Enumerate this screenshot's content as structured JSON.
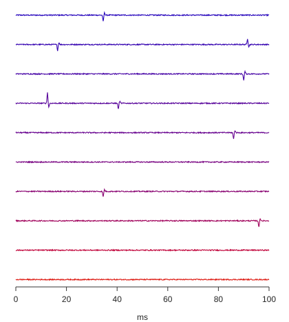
{
  "chart_data": {
    "type": "line",
    "title": "",
    "xlabel": "ms",
    "ylabel": "",
    "xlim": [
      0,
      100
    ],
    "x_ticks": [
      0,
      20,
      40,
      60,
      80,
      100
    ],
    "x_tick_labels": [
      "0",
      "20",
      "40",
      "60",
      "80",
      "100"
    ],
    "grid": false,
    "legend": "none",
    "trace_count": 10,
    "noise_level": 0.05,
    "series": [
      {
        "color": "#2200bb",
        "spikes": [
          {
            "x": 34.5,
            "amp": -0.6
          }
        ]
      },
      {
        "color": "#3300b0",
        "spikes": [
          {
            "x": 16.5,
            "amp": -0.55
          },
          {
            "x": 91.5,
            "amp": 0.55
          }
        ]
      },
      {
        "color": "#4400a5",
        "spikes": [
          {
            "x": 90.0,
            "amp": -0.6
          }
        ]
      },
      {
        "color": "#550099",
        "spikes": [
          {
            "x": 12.5,
            "amp": 1.0
          },
          {
            "x": 40.5,
            "amp": -0.55
          }
        ]
      },
      {
        "color": "#66008e",
        "spikes": [
          {
            "x": 86.0,
            "amp": -0.6
          }
        ]
      },
      {
        "color": "#770080",
        "spikes": []
      },
      {
        "color": "#880070",
        "spikes": [
          {
            "x": 34.5,
            "amp": -0.5
          }
        ]
      },
      {
        "color": "#a0005a",
        "spikes": [
          {
            "x": 96.0,
            "amp": -0.6
          }
        ]
      },
      {
        "color": "#c00038",
        "spikes": []
      },
      {
        "color": "#dd1a12",
        "spikes": []
      }
    ]
  }
}
